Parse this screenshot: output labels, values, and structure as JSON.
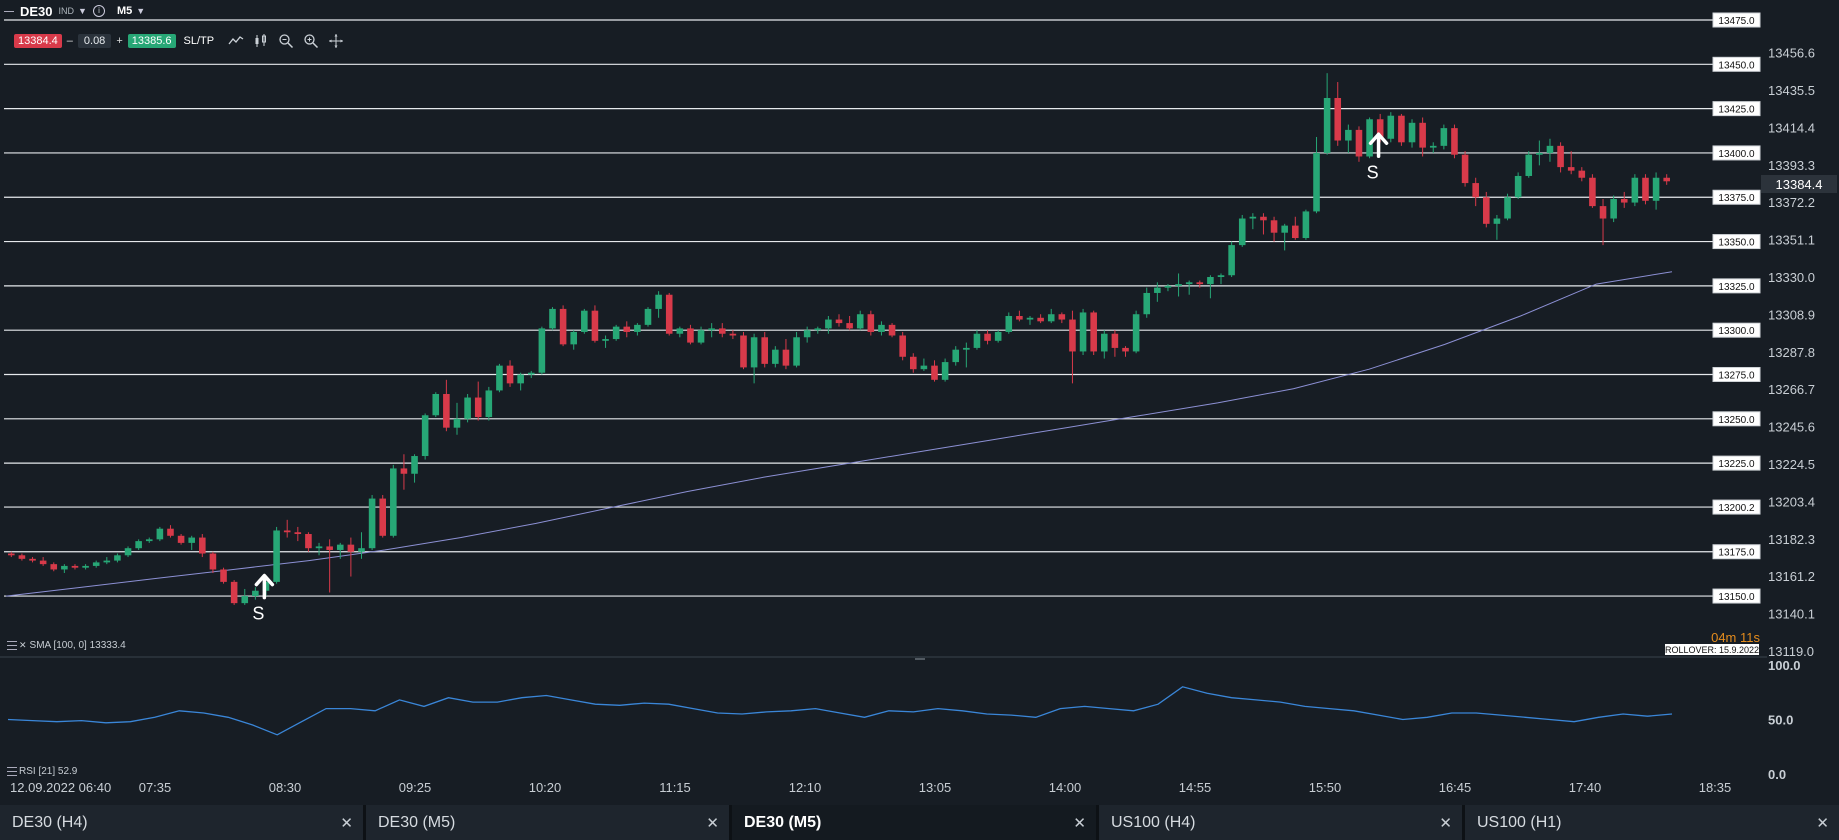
{
  "toolbar": {
    "symbol": "DE30",
    "badge": "IND",
    "timeframe": "M5",
    "sell_price": "13384.4",
    "minus": "–",
    "spread": "0.08",
    "plus": "+",
    "buy_price": "13385.6",
    "sltp": "SL/TP"
  },
  "indicators": {
    "sma_label": "SMA [100, 0] 13333.4",
    "rsi_label": "RSI [21] 52.9"
  },
  "countdown": "04m 11s",
  "rollover": "ROLLOVER: 15.9.2022",
  "current_price_label": "13384.4",
  "tabs": [
    {
      "label": "DE30 (H4)",
      "close": "✕",
      "active": false
    },
    {
      "label": "DE30 (M5)",
      "close": "✕",
      "active": false
    },
    {
      "label": "DE30 (M5)",
      "close": "✕",
      "active": true
    },
    {
      "label": "US100 (H4)",
      "close": "✕",
      "active": false
    },
    {
      "label": "US100 (H1)",
      "close": "✕",
      "active": false
    }
  ],
  "colors": {
    "up": "#27a776",
    "down": "#d83a4a",
    "sma": "#8c90d4",
    "rsi": "#3a86d8",
    "grid_line": "#e6e9ec",
    "countdown": "#e38b1d"
  },
  "chart_data": [
    {
      "type": "candlestick",
      "ylim": [
        13119.0,
        13475.0
      ],
      "y_tick_labels": [
        "13456.6",
        "13435.5",
        "13414.4",
        "13393.3",
        "13372.2",
        "13351.1",
        "13330.0",
        "13308.9",
        "13287.8",
        "13266.7",
        "13245.6",
        "13224.5",
        "13203.4",
        "13182.3",
        "13161.2",
        "13140.1",
        "13119.0"
      ],
      "x_tick_labels": [
        "12.09.2022 06:40",
        "07:35",
        "08:30",
        "09:25",
        "10:20",
        "11:15",
        "12:10",
        "13:05",
        "14:00",
        "14:55",
        "15:50",
        "16:45",
        "17:40",
        "18:35"
      ],
      "horizontal_levels": [
        "13475.0",
        "13450.0",
        "13425.0",
        "13400.0",
        "13375.0",
        "13350.0",
        "13325.0",
        "13300.0",
        "13275.0",
        "13250.0",
        "13225.0",
        "13200.2",
        "13175.0",
        "13150.0"
      ],
      "signals": [
        {
          "label": "S",
          "direction": "up",
          "bar_index": 23
        },
        {
          "label": "S",
          "direction": "up",
          "bar_index": 128
        }
      ],
      "candles": [
        [
          13174,
          13175,
          13172,
          13173
        ],
        [
          13173,
          13174,
          13170,
          13171
        ],
        [
          13171,
          13172,
          13169,
          13170
        ],
        [
          13170,
          13172,
          13167,
          13168
        ],
        [
          13168,
          13169,
          13164,
          13165
        ],
        [
          13165,
          13168,
          13163,
          13167
        ],
        [
          13167,
          13168,
          13165,
          13166
        ],
        [
          13166,
          13168,
          13165,
          13167
        ],
        [
          13167,
          13170,
          13166,
          13169
        ],
        [
          13169,
          13172,
          13168,
          13170
        ],
        [
          13170,
          13174,
          13169,
          13173
        ],
        [
          13173,
          13178,
          13172,
          13177
        ],
        [
          13177,
          13182,
          13176,
          13181
        ],
        [
          13181,
          13183,
          13180,
          13182
        ],
        [
          13182,
          13189,
          13181,
          13188
        ],
        [
          13188,
          13190,
          13183,
          13184
        ],
        [
          13184,
          13185,
          13179,
          13180
        ],
        [
          13180,
          13184,
          13176,
          13183
        ],
        [
          13183,
          13185,
          13172,
          13174
        ],
        [
          13174,
          13175,
          13163,
          13165
        ],
        [
          13165,
          13166,
          13157,
          13158
        ],
        [
          13158,
          13159,
          13145,
          13146
        ],
        [
          13146,
          13154,
          13145,
          13150
        ],
        [
          13150,
          13155,
          13148,
          13153
        ],
        [
          13153,
          13160,
          13150,
          13158
        ],
        [
          13158,
          13189,
          13157,
          13187
        ],
        [
          13187,
          13193,
          13183,
          13186
        ],
        [
          13186,
          13189,
          13181,
          13185
        ],
        [
          13185,
          13186,
          13175,
          13177
        ],
        [
          13177,
          13180,
          13173,
          13178
        ],
        [
          13178,
          13182,
          13152,
          13176
        ],
        [
          13176,
          13180,
          13171,
          13179
        ],
        [
          13179,
          13183,
          13161,
          13175
        ],
        [
          13175,
          13186,
          13171,
          13177
        ],
        [
          13177,
          13207,
          13176,
          13205
        ],
        [
          13205,
          13207,
          13183,
          13184
        ],
        [
          13184,
          13224,
          13183,
          13222
        ],
        [
          13222,
          13230,
          13210,
          13219
        ],
        [
          13219,
          13230,
          13214,
          13229
        ],
        [
          13229,
          13253,
          13227,
          13252
        ],
        [
          13252,
          13265,
          13251,
          13264
        ],
        [
          13264,
          13272,
          13243,
          13245
        ],
        [
          13245,
          13259,
          13241,
          13250
        ],
        [
          13250,
          13264,
          13248,
          13262
        ],
        [
          13262,
          13271,
          13249,
          13251
        ],
        [
          13251,
          13268,
          13249,
          13266
        ],
        [
          13266,
          13281,
          13265,
          13280
        ],
        [
          13280,
          13283,
          13268,
          13270
        ],
        [
          13270,
          13276,
          13266,
          13275
        ],
        [
          13275,
          13277,
          13273,
          13276
        ],
        [
          13276,
          13302,
          13275,
          13301
        ],
        [
          13301,
          13313,
          13300,
          13312
        ],
        [
          13312,
          13314,
          13291,
          13292
        ],
        [
          13292,
          13300,
          13289,
          13299
        ],
        [
          13299,
          13312,
          13298,
          13311
        ],
        [
          13311,
          13314,
          13293,
          13294
        ],
        [
          13294,
          13297,
          13290,
          13295
        ],
        [
          13295,
          13303,
          13294,
          13302
        ],
        [
          13302,
          13305,
          13296,
          13299
        ],
        [
          13299,
          13304,
          13297,
          13303
        ],
        [
          13303,
          13313,
          13302,
          13312
        ],
        [
          13312,
          13322,
          13307,
          13320
        ],
        [
          13320,
          13321,
          13297,
          13298
        ],
        [
          13298,
          13302,
          13296,
          13301
        ],
        [
          13301,
          13303,
          13292,
          13293
        ],
        [
          13293,
          13302,
          13292,
          13300
        ],
        [
          13300,
          13304,
          13296,
          13301
        ],
        [
          13301,
          13304,
          13296,
          13298
        ],
        [
          13298,
          13300,
          13295,
          13297
        ],
        [
          13297,
          13299,
          13278,
          13279
        ],
        [
          13279,
          13298,
          13270,
          13296
        ],
        [
          13296,
          13299,
          13279,
          13281
        ],
        [
          13281,
          13291,
          13279,
          13289
        ],
        [
          13289,
          13295,
          13278,
          13280
        ],
        [
          13280,
          13299,
          13279,
          13296
        ],
        [
          13296,
          13302,
          13293,
          13300
        ],
        [
          13300,
          13302,
          13298,
          13301
        ],
        [
          13301,
          13308,
          13298,
          13306
        ],
        [
          13306,
          13309,
          13302,
          13304
        ],
        [
          13304,
          13308,
          13300,
          13301
        ],
        [
          13301,
          13311,
          13300,
          13309
        ],
        [
          13309,
          13311,
          13297,
          13299
        ],
        [
          13299,
          13305,
          13297,
          13303
        ],
        [
          13303,
          13304,
          13296,
          13297
        ],
        [
          13297,
          13299,
          13283,
          13285
        ],
        [
          13285,
          13287,
          13276,
          13278
        ],
        [
          13278,
          13284,
          13277,
          13280
        ],
        [
          13280,
          13283,
          13271,
          13272
        ],
        [
          13272,
          13284,
          13271,
          13282
        ],
        [
          13282,
          13291,
          13280,
          13289
        ],
        [
          13289,
          13293,
          13279,
          13290
        ],
        [
          13290,
          13300,
          13289,
          13298
        ],
        [
          13298,
          13300,
          13292,
          13294
        ],
        [
          13294,
          13300,
          13293,
          13299
        ],
        [
          13299,
          13310,
          13298,
          13308
        ],
        [
          13308,
          13311,
          13305,
          13306
        ],
        [
          13306,
          13308,
          13303,
          13307
        ],
        [
          13307,
          13309,
          13304,
          13305
        ],
        [
          13305,
          13312,
          13304,
          13309
        ],
        [
          13309,
          13310,
          13304,
          13306
        ],
        [
          13306,
          13311,
          13270,
          13288
        ],
        [
          13288,
          13312,
          13286,
          13310
        ],
        [
          13310,
          13311,
          13286,
          13288
        ],
        [
          13288,
          13300,
          13284,
          13298
        ],
        [
          13298,
          13300,
          13285,
          13290
        ],
        [
          13290,
          13291,
          13285,
          13288
        ],
        [
          13288,
          13311,
          13287,
          13309
        ],
        [
          13309,
          13324,
          13307,
          13321
        ],
        [
          13321,
          13327,
          13316,
          13324
        ],
        [
          13324,
          13326,
          13322,
          13325
        ],
        [
          13325,
          13332,
          13319,
          13326
        ],
        [
          13326,
          13328,
          13320,
          13327
        ],
        [
          13327,
          13328,
          13324,
          13326
        ],
        [
          13326,
          13331,
          13318,
          13330
        ],
        [
          13330,
          13332,
          13326,
          13331
        ],
        [
          13331,
          13350,
          13330,
          13348
        ],
        [
          13348,
          13365,
          13347,
          13363
        ],
        [
          13363,
          13366,
          13357,
          13364
        ],
        [
          13364,
          13366,
          13354,
          13362
        ],
        [
          13362,
          13364,
          13350,
          13355
        ],
        [
          13355,
          13360,
          13345,
          13359
        ],
        [
          13359,
          13364,
          13351,
          13352
        ],
        [
          13352,
          13368,
          13351,
          13367
        ],
        [
          13367,
          13409,
          13366,
          13400
        ],
        [
          13400,
          13445,
          13399,
          13431
        ],
        [
          13431,
          13440,
          13404,
          13407
        ],
        [
          13407,
          13416,
          13400,
          13413
        ],
        [
          13413,
          13415,
          13395,
          13398
        ],
        [
          13398,
          13420,
          13397,
          13419
        ],
        [
          13419,
          13422,
          13406,
          13408
        ],
        [
          13408,
          13423,
          13406,
          13421
        ],
        [
          13421,
          13422,
          13404,
          13406
        ],
        [
          13406,
          13419,
          13403,
          13417
        ],
        [
          13417,
          13420,
          13398,
          13403
        ],
        [
          13403,
          13406,
          13400,
          13404
        ],
        [
          13404,
          13416,
          13402,
          13414
        ],
        [
          13414,
          13416,
          13397,
          13399
        ],
        [
          13399,
          13401,
          13381,
          13383
        ],
        [
          13383,
          13386,
          13370,
          13375
        ],
        [
          13375,
          13378,
          13358,
          13360
        ],
        [
          13360,
          13365,
          13351,
          13363
        ],
        [
          13363,
          13377,
          13362,
          13375
        ],
        [
          13375,
          13389,
          13374,
          13387
        ],
        [
          13387,
          13401,
          13386,
          13399
        ],
        [
          13399,
          13407,
          13393,
          13400
        ],
        [
          13400,
          13408,
          13395,
          13404
        ],
        [
          13404,
          13406,
          13389,
          13392
        ],
        [
          13392,
          13401,
          13388,
          13390
        ],
        [
          13390,
          13392,
          13384,
          13386
        ],
        [
          13386,
          13388,
          13369,
          13370
        ],
        [
          13370,
          13374,
          13348,
          13363
        ],
        [
          13363,
          13376,
          13361,
          13374
        ],
        [
          13374,
          13378,
          13369,
          13372
        ],
        [
          13372,
          13388,
          13370,
          13386
        ],
        [
          13386,
          13388,
          13371,
          13373
        ],
        [
          13373,
          13389,
          13368,
          13386
        ],
        [
          13386,
          13388,
          13382,
          13384
        ]
      ]
    },
    {
      "type": "line",
      "name": "SMA [100, 0]",
      "ylim": [
        13119.0,
        13475.0
      ],
      "values": [
        13150,
        13155,
        13160,
        13165,
        13170,
        13176,
        13183,
        13191,
        13200,
        13209,
        13217,
        13224,
        13231,
        13238,
        13245,
        13252,
        13259,
        13267,
        13278,
        13292,
        13308,
        13326,
        13333
      ]
    },
    {
      "type": "line",
      "name": "RSI [21]",
      "ylim": [
        0,
        100
      ],
      "y_tick_labels": [
        "100.0",
        "50.0",
        "0.0"
      ],
      "values": [
        50,
        49,
        48,
        49,
        47,
        48,
        52,
        58,
        56,
        52,
        45,
        36,
        48,
        60,
        60,
        58,
        68,
        62,
        70,
        66,
        66,
        70,
        72,
        68,
        64,
        63,
        65,
        64,
        60,
        56,
        55,
        57,
        58,
        60,
        56,
        52,
        58,
        57,
        60,
        58,
        55,
        54,
        52,
        60,
        62,
        60,
        58,
        64,
        80,
        74,
        70,
        68,
        66,
        62,
        60,
        58,
        54,
        50,
        52,
        56,
        56,
        54,
        52,
        50,
        48,
        52,
        55,
        53,
        55
      ]
    }
  ]
}
